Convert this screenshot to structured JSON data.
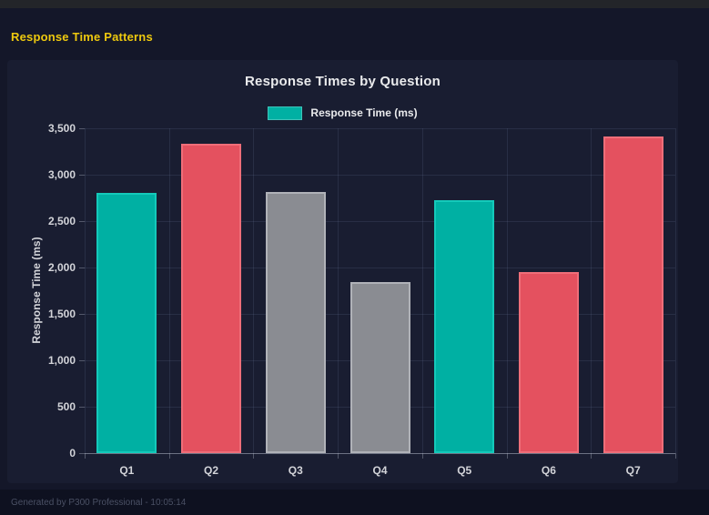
{
  "page": {
    "header": "Response Time Patterns",
    "footer": "Generated by P300 Professional - 10:05:14"
  },
  "chart_data": {
    "type": "bar",
    "title": "Response Times by Question",
    "categories": [
      "Q1",
      "Q2",
      "Q3",
      "Q4",
      "Q5",
      "Q6",
      "Q7"
    ],
    "series": [
      {
        "name": "Response Time (ms)",
        "values": [
          2800,
          3330,
          2810,
          1840,
          2730,
          1950,
          3410
        ]
      }
    ],
    "bar_colors": [
      "#00b0a3",
      "#e4515f",
      "#8a8c92",
      "#8a8c92",
      "#00b0a3",
      "#e4515f",
      "#e4515f"
    ],
    "bar_border_colors": [
      "#14c9ba",
      "#ef6e79",
      "#b0b2b8",
      "#b0b2b8",
      "#14c9ba",
      "#ef6e79",
      "#ef6e79"
    ],
    "xlabel": "",
    "ylabel": "Response Time (ms)",
    "ylim": [
      0,
      3500
    ],
    "ytick_step": 500,
    "yticks": [
      "0",
      "500",
      "1,000",
      "1,500",
      "2,000",
      "2,500",
      "3,000",
      "3,500"
    ],
    "grid": true,
    "legend_position": "top",
    "legend_swatch_color": "#00b0a3"
  },
  "colors": {
    "accent_yellow": "#eec90e",
    "page_bg": "#141729",
    "panel_bg": "#191d31",
    "topstrip_bg": "#232529",
    "footer_bg": "#0e1120",
    "text_primary": "#e9eaec",
    "text_axis": "#d3d4d9",
    "footer_text": "#4a5064",
    "teal": "#00b0a3",
    "red": "#e4515f",
    "gray": "#8a8c92"
  }
}
